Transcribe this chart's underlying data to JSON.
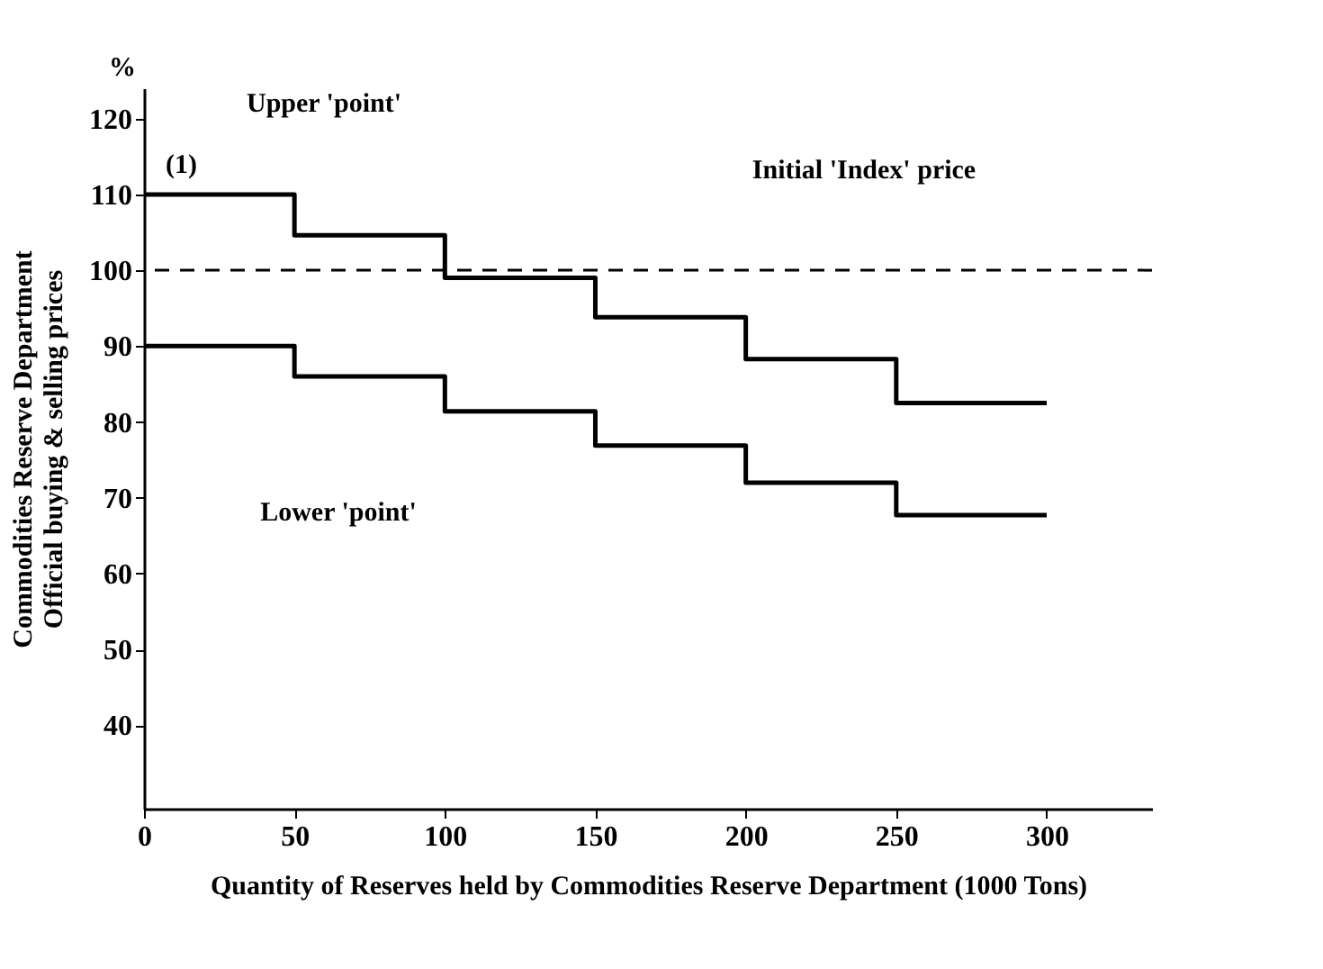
{
  "chart_data": {
    "type": "step",
    "xlabel": "Quantity of Reserves held by Commodities Reserve Department (1000 Tons)",
    "ylabel": "Commodities Reserve Department\nOfficial buying & selling prices",
    "x": [
      0,
      50,
      100,
      150,
      200,
      250,
      300
    ],
    "series": [
      {
        "color": "#000000",
        "values": [
          110,
          104.6,
          99,
          93.8,
          88.3,
          82.5,
          82.5
        ]
      },
      {
        "color": "#000000",
        "values": [
          90,
          86,
          81.4,
          76.9,
          72,
          67.7,
          67.7
        ]
      }
    ],
    "xlim": [
      0,
      335
    ],
    "ylim": [
      29,
      124
    ],
    "xticks": [
      0,
      50,
      100,
      150,
      200,
      250,
      300
    ],
    "yticks": [
      40,
      50,
      60,
      70,
      80,
      90,
      100,
      110,
      120
    ],
    "ref_lines": [
      {
        "axis": "y",
        "value": 100,
        "label": "Initial 'Index' price",
        "color": "#000000",
        "line_style": "dashed"
      }
    ],
    "annotations": [
      "Upper 'point'",
      "Lower 'point'",
      "(1)",
      "%"
    ],
    "grid": false,
    "marker": "none",
    "line_style": "solid"
  }
}
